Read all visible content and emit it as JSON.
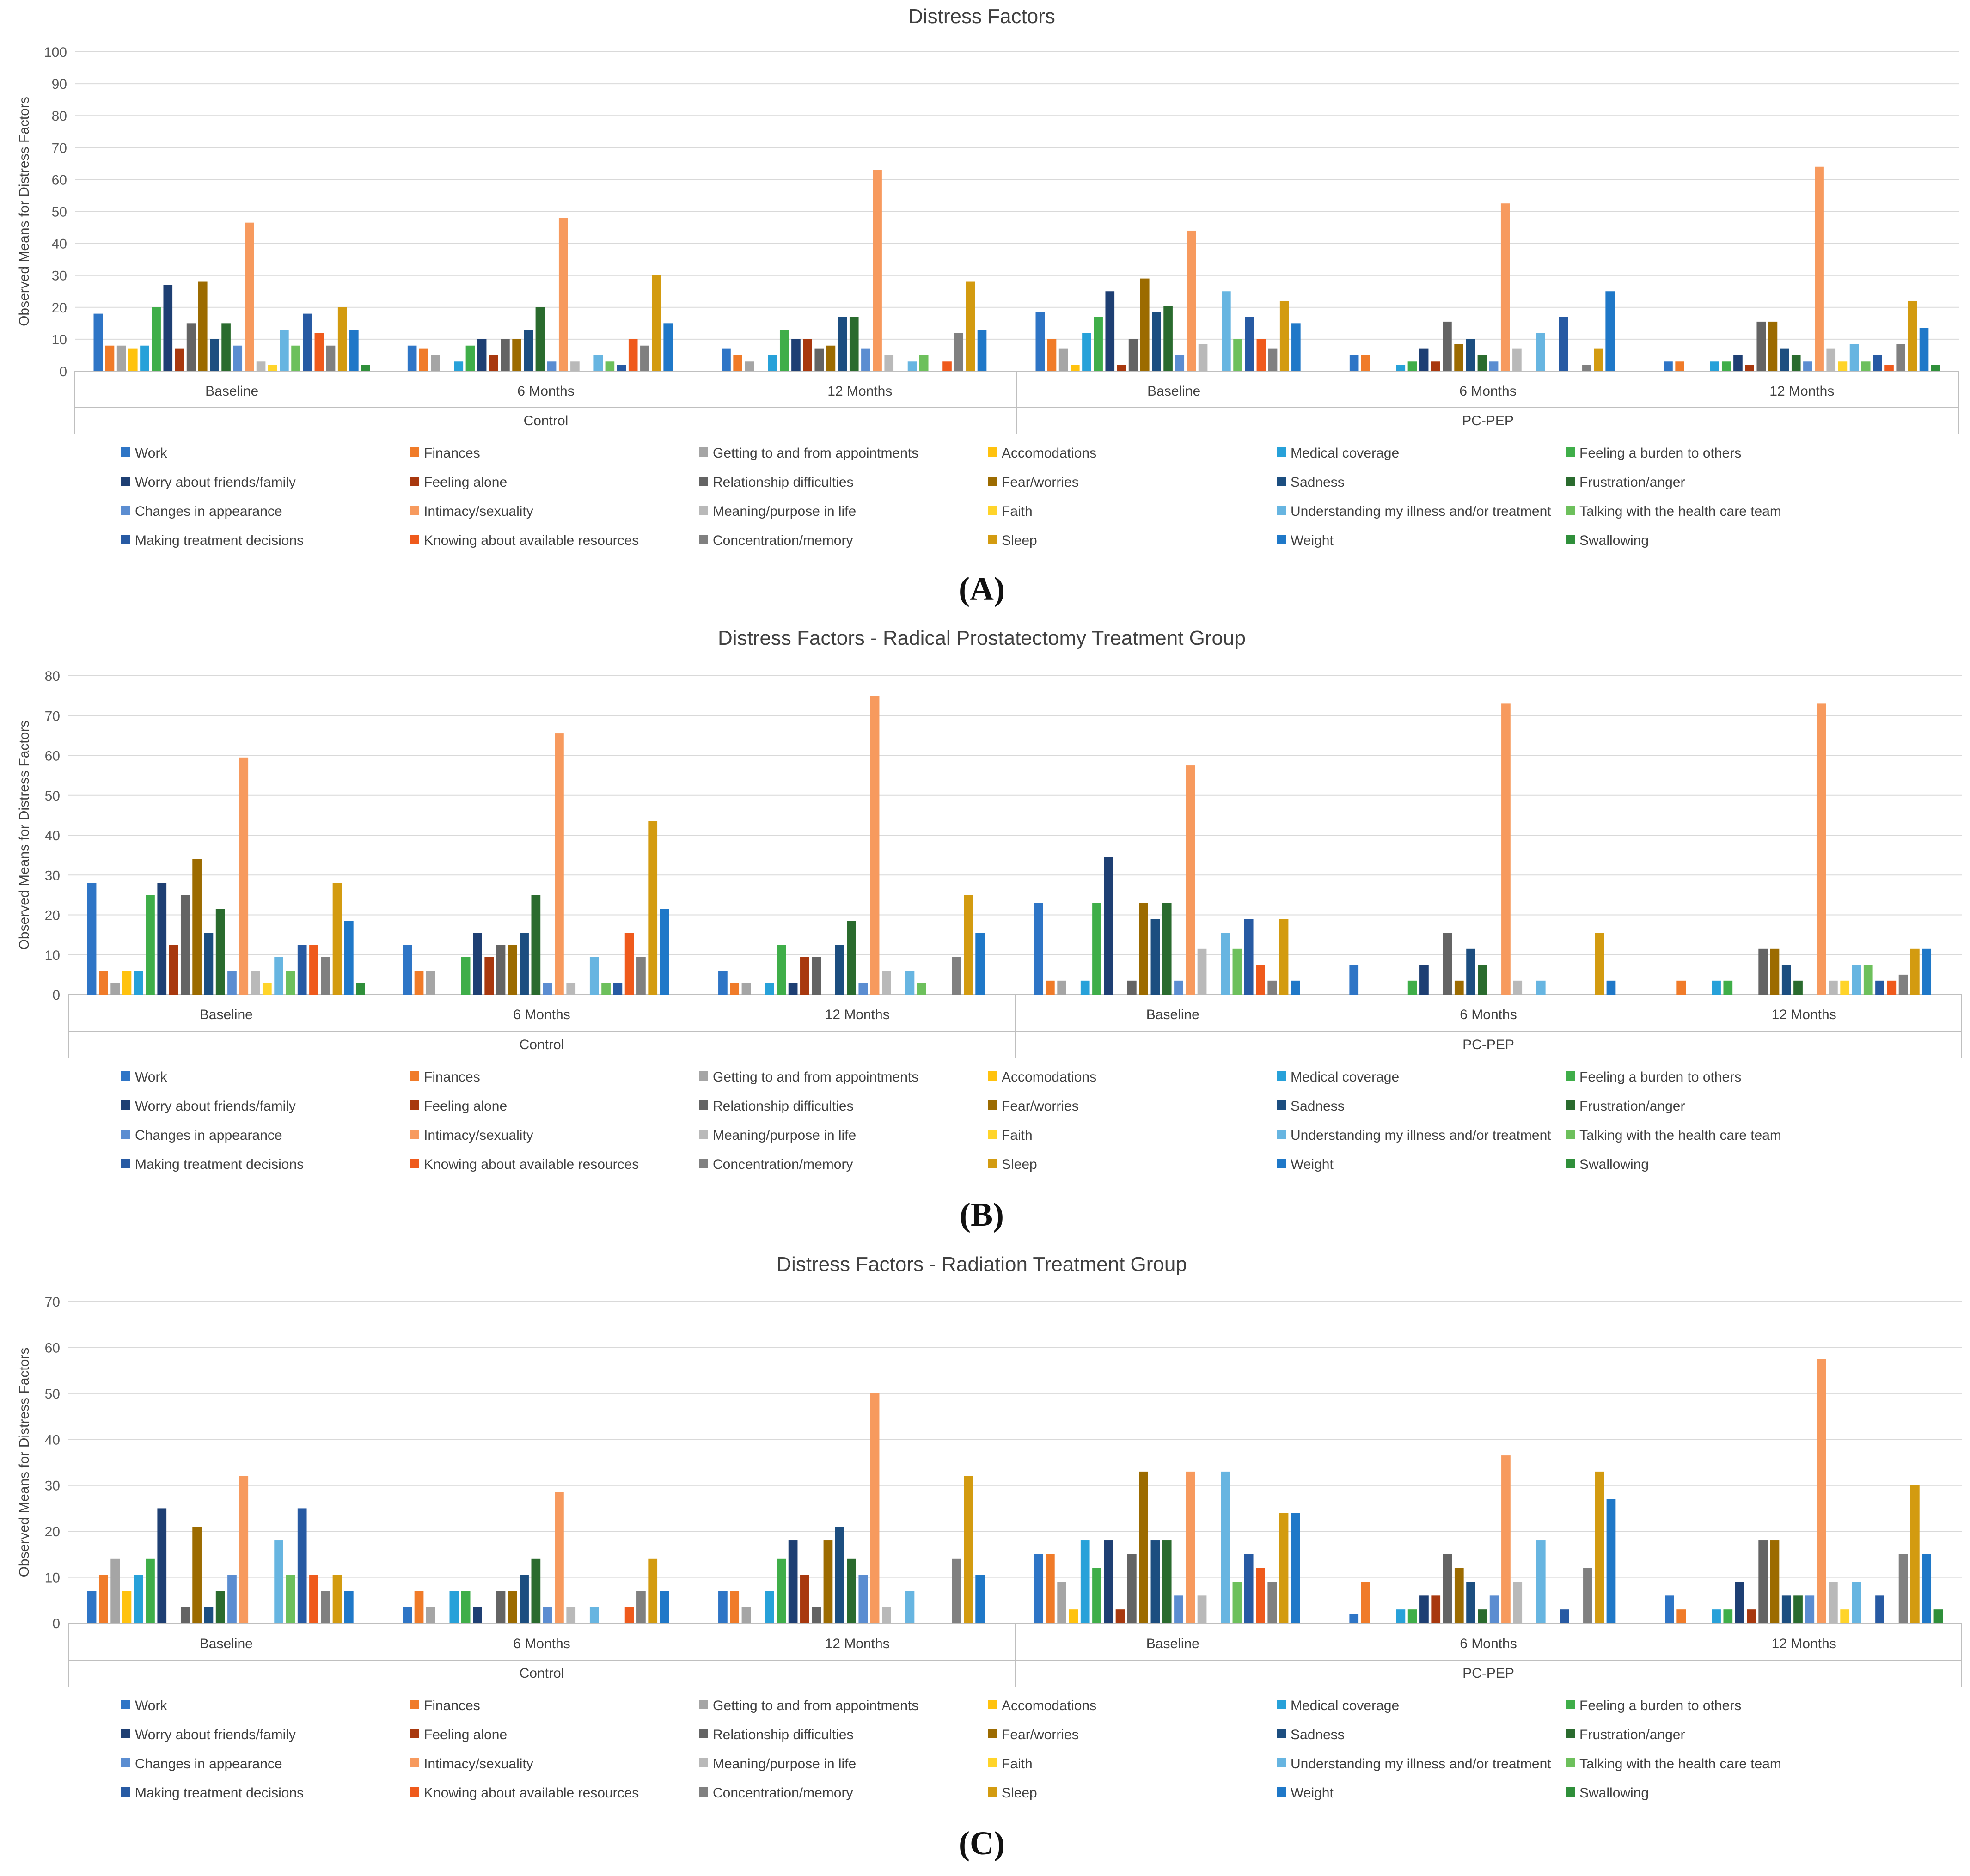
{
  "figure": {
    "panel_labels": [
      "(A)",
      "(B)",
      "(C)"
    ]
  },
  "chart_data": [
    {
      "type": "bar",
      "title": "Distress Factors",
      "ylabel": "Observed Means for Distress Factors",
      "xlabel": "",
      "ylim": [
        0,
        100
      ],
      "yticks": [
        0,
        10,
        20,
        30,
        40,
        50,
        60,
        70,
        80,
        90,
        100
      ],
      "groups": [
        "Control",
        "PC-PEP"
      ],
      "timepoints": [
        "Baseline",
        "6 Months",
        "12 Months"
      ],
      "legend": [
        "Work",
        "Finances",
        "Getting to and from appointments",
        "Accomodations",
        "Medical coverage",
        "Feeling a burden to others",
        "Worry about friends/family",
        "Feeling alone",
        "Relationship difficulties",
        "Fear/worries",
        "Sadness",
        "Frustration/anger",
        "Changes in appearance",
        "Intimacy/sexuality",
        "Meaning/purpose in life",
        "Faith",
        "Understanding my illness and/or treatment",
        "Talking with the health care team",
        "Making treatment decisions",
        "Knowing about available resources",
        "Concentration/memory",
        "Sleep",
        "Weight",
        "Swallowing"
      ],
      "series": [
        [
          18,
          8,
          8,
          7,
          8,
          20,
          27,
          7,
          15,
          28,
          10,
          15,
          8,
          46.5,
          3,
          2,
          13,
          8,
          18,
          12,
          8,
          20,
          13,
          2
        ],
        [
          8,
          7,
          5,
          0,
          3,
          8,
          10,
          5,
          10,
          10,
          13,
          20,
          3,
          48,
          3,
          0,
          5,
          3,
          2,
          10,
          8,
          30,
          15,
          0
        ],
        [
          7,
          5,
          3,
          0,
          5,
          13,
          10,
          10,
          7,
          8,
          17,
          17,
          7,
          63,
          5,
          0,
          3,
          5,
          0,
          3,
          12,
          28,
          13,
          0
        ],
        [
          18.5,
          10,
          7,
          2,
          12,
          17,
          25,
          2,
          10,
          29,
          18.5,
          20.5,
          5,
          44,
          8.5,
          0,
          25,
          10,
          17,
          10,
          7,
          22,
          15,
          0
        ],
        [
          5,
          5,
          0,
          0,
          2,
          3,
          7,
          3,
          15.5,
          8.5,
          10,
          5,
          3,
          52.5,
          7,
          0,
          12,
          0,
          17,
          0,
          2,
          7,
          25,
          0
        ],
        [
          3,
          3,
          0,
          0,
          3,
          3,
          5,
          2,
          15.5,
          15.5,
          7,
          5,
          3,
          64,
          7,
          3,
          8.5,
          3,
          5,
          2,
          8.5,
          22,
          13.5,
          2
        ]
      ]
    },
    {
      "type": "bar",
      "title": "Distress Factors - Radical Prostatectomy Treatment Group",
      "ylabel": "Observed Means for Distress Factors",
      "xlabel": "",
      "ylim": [
        0,
        80
      ],
      "yticks": [
        0,
        10,
        20,
        30,
        40,
        50,
        60,
        70,
        80
      ],
      "groups": [
        "Control",
        "PC-PEP"
      ],
      "timepoints": [
        "Baseline",
        "6 Months",
        "12 Months"
      ],
      "legend": [
        "Work",
        "Finances",
        "Getting to and from appointments",
        "Accomodations",
        "Medical coverage",
        "Feeling a burden to others",
        "Worry about friends/family",
        "Feeling alone",
        "Relationship difficulties",
        "Fear/worries",
        "Sadness",
        "Frustration/anger",
        "Changes in appearance",
        "Intimacy/sexuality",
        "Meaning/purpose in life",
        "Faith",
        "Understanding my illness and/or treatment",
        "Talking with the health care team",
        "Making treatment decisions",
        "Knowing about available resources",
        "Concentration/memory",
        "Sleep",
        "Weight",
        "Swallowing"
      ],
      "series": [
        [
          28,
          6,
          3,
          6,
          6,
          25,
          28,
          12.5,
          25,
          34,
          15.5,
          21.5,
          6,
          59.5,
          6,
          3,
          9.5,
          6,
          12.5,
          12.5,
          9.5,
          28,
          18.5,
          3
        ],
        [
          12.5,
          6,
          6,
          0,
          0,
          9.5,
          15.5,
          9.5,
          12.5,
          12.5,
          15.5,
          25,
          3,
          65.5,
          3,
          0,
          9.5,
          3,
          3,
          15.5,
          9.5,
          43.5,
          21.5,
          0
        ],
        [
          6,
          3,
          3,
          0,
          3,
          12.5,
          3,
          9.5,
          9.5,
          0,
          12.5,
          18.5,
          3,
          75,
          6,
          0,
          6,
          3,
          0,
          0,
          9.5,
          25,
          15.5,
          0
        ],
        [
          23,
          3.5,
          3.5,
          0,
          3.5,
          23,
          34.5,
          0,
          3.5,
          23,
          19,
          23,
          3.5,
          57.5,
          11.5,
          0,
          15.5,
          11.5,
          19,
          7.5,
          3.5,
          19,
          3.5,
          0
        ],
        [
          7.5,
          0,
          0,
          0,
          0,
          3.5,
          7.5,
          0,
          15.5,
          3.5,
          11.5,
          7.5,
          0,
          73,
          3.5,
          0,
          3.5,
          0,
          0,
          0,
          0,
          15.5,
          3.5,
          0
        ],
        [
          0,
          3.5,
          0,
          0,
          3.5,
          3.5,
          0,
          0,
          11.5,
          11.5,
          7.5,
          3.5,
          0,
          73,
          3.5,
          3.5,
          7.5,
          7.5,
          3.5,
          3.5,
          5,
          11.5,
          11.5,
          0
        ]
      ]
    },
    {
      "type": "bar",
      "title": "Distress Factors - Radiation Treatment Group",
      "ylabel": "Observed Means for Distress Factors",
      "xlabel": "",
      "ylim": [
        0,
        70
      ],
      "yticks": [
        0,
        10,
        20,
        30,
        40,
        50,
        60,
        70
      ],
      "groups": [
        "Control",
        "PC-PEP"
      ],
      "timepoints": [
        "Baseline",
        "6 Months",
        "12 Months"
      ],
      "legend": [
        "Work",
        "Finances",
        "Getting to and from appointments",
        "Accomodations",
        "Medical coverage",
        "Feeling a burden to others",
        "Worry about friends/family",
        "Feeling alone",
        "Relationship difficulties",
        "Fear/worries",
        "Sadness",
        "Frustration/anger",
        "Changes in appearance",
        "Intimacy/sexuality",
        "Meaning/purpose in life",
        "Faith",
        "Understanding my illness and/or treatment",
        "Talking with the health care team",
        "Making treatment decisions",
        "Knowing about available resources",
        "Concentration/memory",
        "Sleep",
        "Weight",
        "Swallowing"
      ],
      "series": [
        [
          7,
          10.5,
          14,
          7,
          10.5,
          14,
          25,
          0,
          3.5,
          21,
          3.5,
          7,
          10.5,
          32,
          0,
          0,
          18,
          10.5,
          25,
          10.5,
          7,
          10.5,
          7,
          0
        ],
        [
          3.5,
          7,
          3.5,
          0,
          7,
          7,
          3.5,
          0,
          7,
          7,
          10.5,
          14,
          3.5,
          28.5,
          3.5,
          0,
          3.5,
          0,
          0,
          3.5,
          7,
          14,
          7,
          0
        ],
        [
          7,
          7,
          3.5,
          0,
          7,
          14,
          18,
          10.5,
          3.5,
          18,
          21,
          14,
          10.5,
          50,
          3.5,
          0,
          7,
          0,
          0,
          0,
          14,
          32,
          10.5,
          0
        ],
        [
          15,
          15,
          9,
          3,
          18,
          12,
          18,
          3,
          15,
          33,
          18,
          18,
          6,
          33,
          6,
          0,
          33,
          9,
          15,
          12,
          9,
          24,
          24,
          0
        ],
        [
          2,
          9,
          0,
          0,
          3,
          3,
          6,
          6,
          15,
          12,
          9,
          3,
          6,
          36.5,
          9,
          0,
          18,
          0,
          3,
          0,
          12,
          33,
          27,
          0
        ],
        [
          6,
          3,
          0,
          0,
          3,
          3,
          9,
          3,
          18,
          18,
          6,
          6,
          6,
          57.5,
          9,
          3,
          9,
          0,
          6,
          0,
          15,
          30,
          15,
          3
        ]
      ]
    }
  ],
  "colors": [
    "#2e75c6",
    "#f07b29",
    "#a5a5a5",
    "#ffc20e",
    "#27a1d9",
    "#3fae49",
    "#1e3f73",
    "#a8380e",
    "#646464",
    "#9c6b00",
    "#1c4e80",
    "#2a6b2e",
    "#5b8dd1",
    "#f79a5e",
    "#b9b9b9",
    "#ffd42a",
    "#67b5e1",
    "#6dc05c",
    "#275aa3",
    "#ef5a1c",
    "#808080",
    "#d39b10",
    "#1f78c8",
    "#2f8f3a"
  ]
}
